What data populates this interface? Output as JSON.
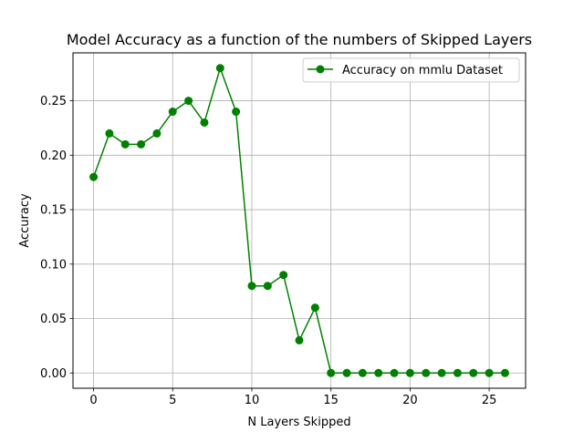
{
  "chart_data": {
    "type": "line",
    "title": "Model Accuracy as a function of the numbers of Skipped Layers",
    "xlabel": "N Layers Skipped",
    "ylabel": "Accuracy",
    "xlim": [
      -1.3,
      27.3
    ],
    "ylim": [
      -0.014,
      0.294
    ],
    "x_ticks": [
      0,
      5,
      10,
      15,
      20,
      25
    ],
    "y_ticks": [
      0.0,
      0.05,
      0.1,
      0.15,
      0.2,
      0.25
    ],
    "x_tick_labels": [
      "0",
      "5",
      "10",
      "15",
      "20",
      "25"
    ],
    "y_tick_labels": [
      "0.00",
      "0.05",
      "0.10",
      "0.15",
      "0.20",
      "0.25"
    ],
    "grid": true,
    "legend_position": "top-right",
    "series": [
      {
        "name": "Accuracy on mmlu Dataset",
        "color": "#008000",
        "marker": "circle",
        "x": [
          0,
          1,
          2,
          3,
          4,
          5,
          6,
          7,
          8,
          9,
          10,
          11,
          12,
          13,
          14,
          15,
          16,
          17,
          18,
          19,
          20,
          21,
          22,
          23,
          24,
          25,
          26
        ],
        "values": [
          0.18,
          0.22,
          0.21,
          0.21,
          0.22,
          0.24,
          0.25,
          0.23,
          0.28,
          0.24,
          0.08,
          0.08,
          0.09,
          0.03,
          0.06,
          0.0,
          0.0,
          0.0,
          0.0,
          0.0,
          0.0,
          0.0,
          0.0,
          0.0,
          0.0,
          0.0,
          0.0
        ]
      }
    ]
  }
}
